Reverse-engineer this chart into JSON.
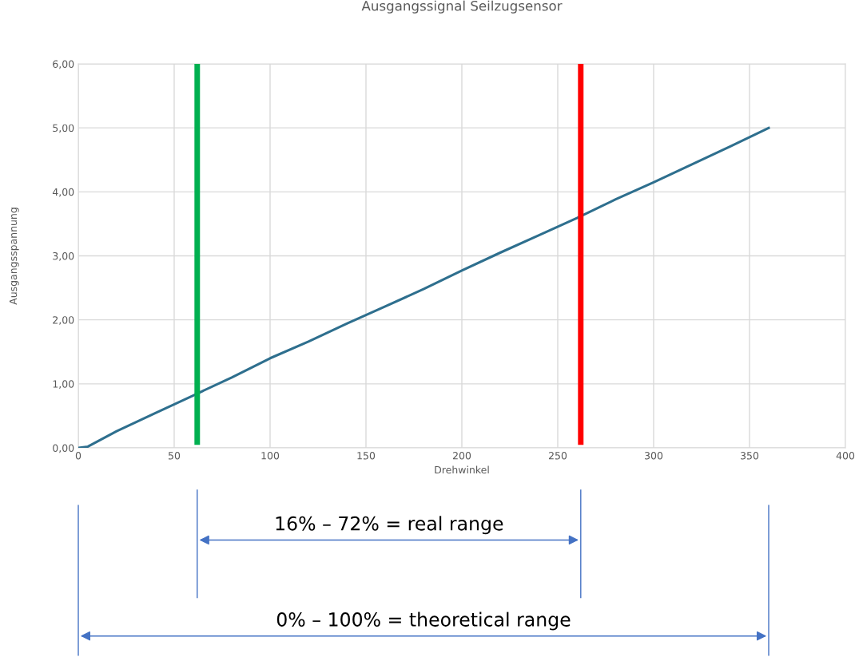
{
  "chart_data": {
    "type": "line",
    "title": "Ausgangssignal Seilzugsensor",
    "xlabel": "Drehwinkel",
    "ylabel": "Ausgangsspannung",
    "series": [
      {
        "color": "#2e6f8e",
        "x": [
          0,
          5,
          20,
          40,
          60,
          80,
          100,
          120,
          140,
          160,
          180,
          200,
          220,
          240,
          260,
          280,
          300,
          320,
          340,
          360
        ],
        "values": [
          0.0,
          0.02,
          0.26,
          0.54,
          0.82,
          1.1,
          1.4,
          1.66,
          1.94,
          2.21,
          2.48,
          2.77,
          3.05,
          3.32,
          3.59,
          3.88,
          4.15,
          4.43,
          4.71,
          5.0
        ]
      }
    ],
    "xlim": [
      0,
      400
    ],
    "xticks": [
      0,
      50,
      100,
      150,
      200,
      250,
      300,
      350,
      400
    ],
    "ylim": [
      0,
      6
    ],
    "yticks": [
      {
        "value": 0,
        "label": "0,00"
      },
      {
        "value": 1,
        "label": "1,00"
      },
      {
        "value": 2,
        "label": "2,00"
      },
      {
        "value": 3,
        "label": "3,00"
      },
      {
        "value": 4,
        "label": "4,00"
      },
      {
        "value": 5,
        "label": "5,00"
      },
      {
        "value": 6,
        "label": "6,00"
      }
    ],
    "grid": true,
    "line_style": "solid",
    "ref_lines": [
      {
        "axis": "x",
        "value": 62,
        "color": "#00b050"
      },
      {
        "axis": "x",
        "value": 262,
        "color": "#ff0000"
      }
    ],
    "annotations": [
      "16% – 72% = real range",
      "0% – 100% = theoretical range"
    ]
  }
}
